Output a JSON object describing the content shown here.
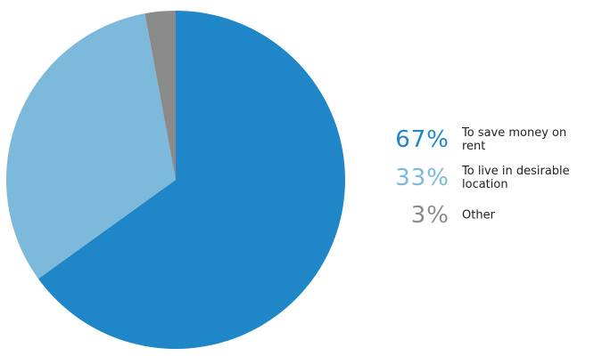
{
  "chart_data": {
    "type": "pie",
    "categories": [
      "To save money on rent",
      "To live in desirable location",
      "Other"
    ],
    "values": [
      67,
      33,
      3
    ],
    "value_labels": [
      "67%",
      "33%",
      "3%"
    ],
    "colors": [
      "#1f87c7",
      "#7db9da",
      "#8a8a8a"
    ]
  }
}
